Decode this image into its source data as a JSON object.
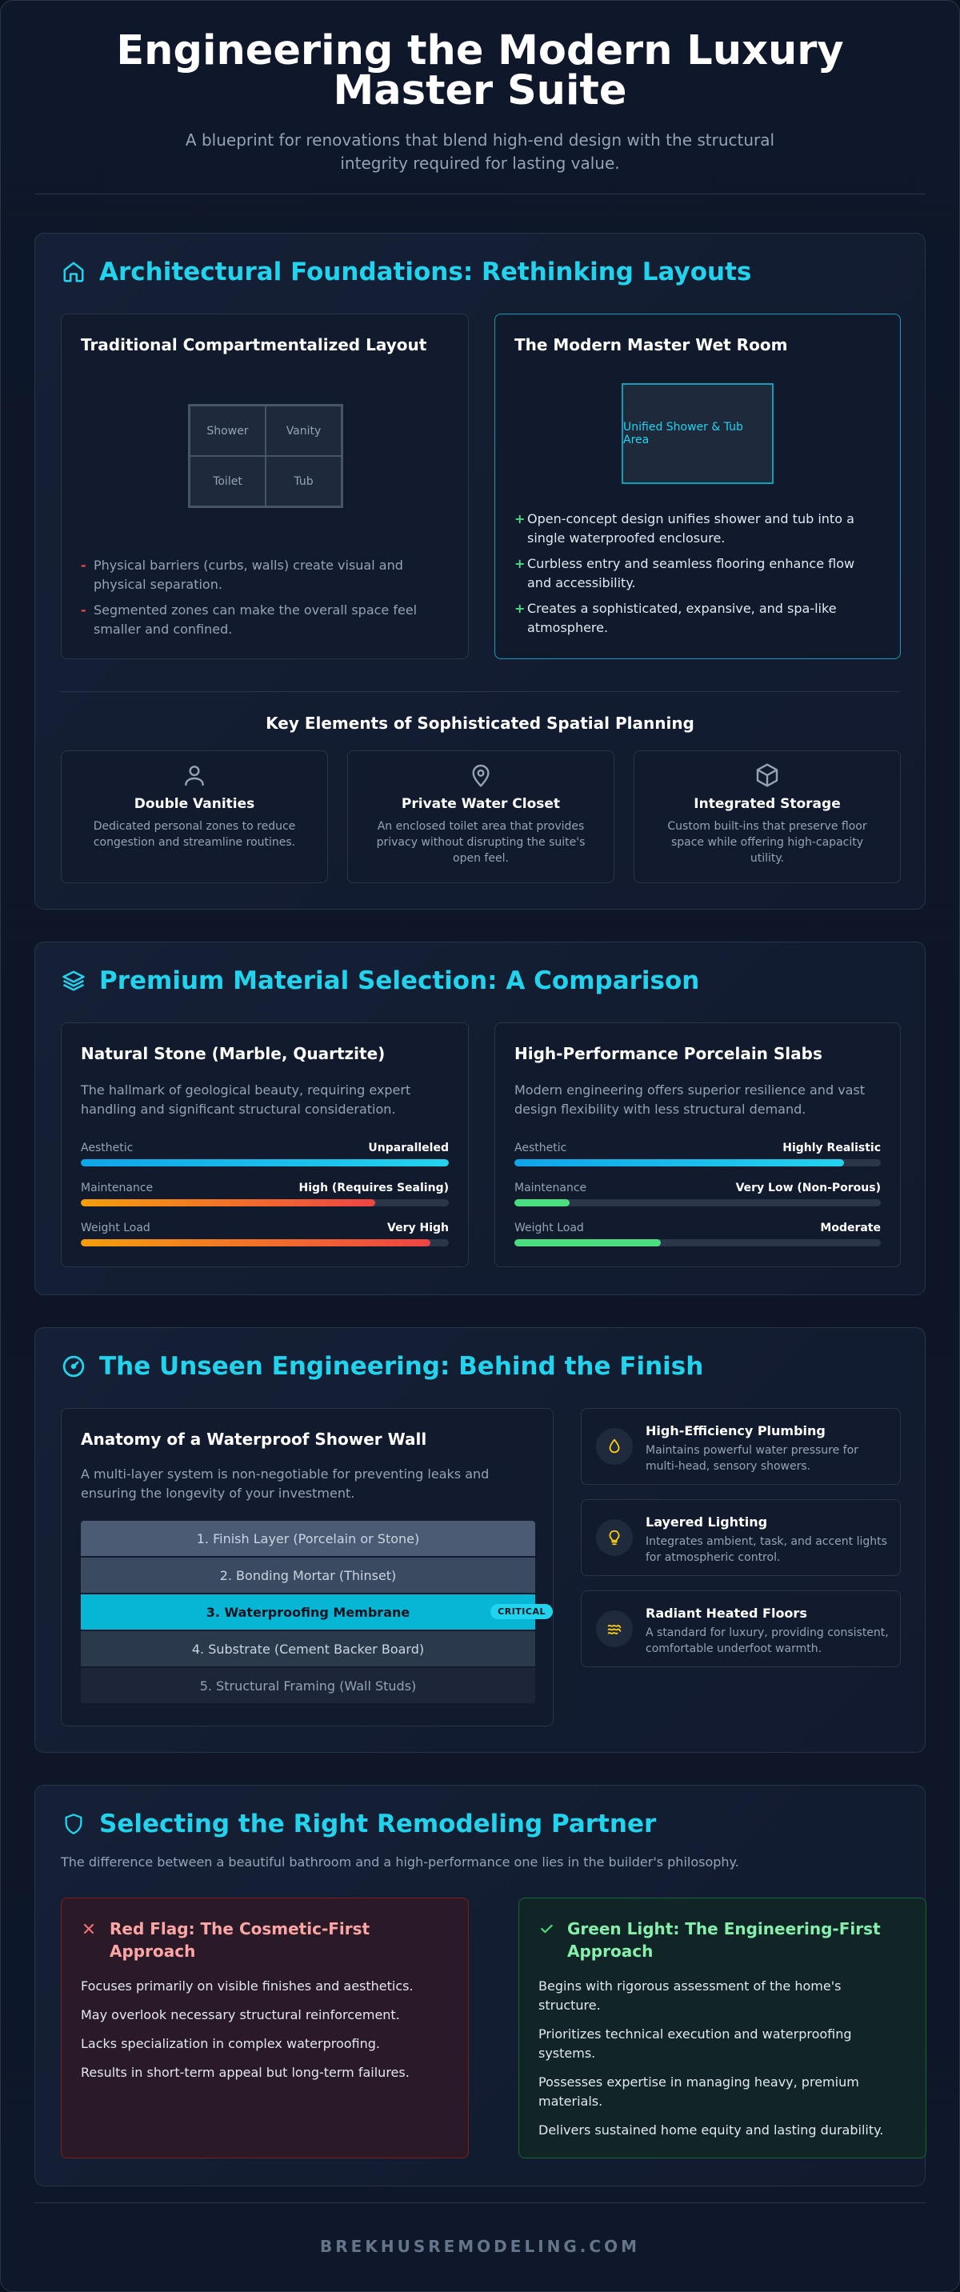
{
  "header": {
    "title": "Engineering the Modern Luxury Master Suite",
    "subtitle": "A blueprint for renovations that blend high-end design with the structural integrity required for lasting value."
  },
  "colors": {
    "accent": "#22d3ee",
    "background": "#0f172a",
    "red": "#ef4444",
    "green": "#4ade80",
    "orange": "#f59e0b"
  },
  "layouts": {
    "title": "Architectural Foundations: Rethinking Layouts",
    "icon": "home-icon",
    "traditional": {
      "title": "Traditional Compartmentalized Layout",
      "grid": [
        "Shower",
        "Vanity",
        "Toilet",
        "Tub"
      ],
      "bullets": [
        "Physical barriers (curbs, walls) create visual and physical separation.",
        "Segmented zones can make the overall space feel smaller and confined."
      ],
      "bullet_marker": "-"
    },
    "modern": {
      "title": "The Modern Master Wet Room",
      "box_label": "Unified Shower & Tub Area",
      "bullets": [
        "Open-concept design unifies shower and tub into a single waterproofed enclosure.",
        "Curbless entry and seamless flooring enhance flow and accessibility.",
        "Creates a sophisticated, expansive, and spa-like atmosphere."
      ],
      "bullet_marker": "+"
    },
    "key_elements": {
      "title": "Key Elements of Sophisticated Spatial Planning",
      "items": [
        {
          "icon": "user-icon",
          "title": "Double Vanities",
          "desc": "Dedicated personal zones to reduce congestion and streamline routines."
        },
        {
          "icon": "location-pin-icon",
          "title": "Private Water Closet",
          "desc": "An enclosed toilet area that provides privacy without disrupting the suite's open feel."
        },
        {
          "icon": "cube-icon",
          "title": "Integrated Storage",
          "desc": "Custom built-ins that preserve floor space while offering high-capacity utility."
        }
      ]
    }
  },
  "materials": {
    "title": "Premium Material Selection: A Comparison",
    "icon": "layers-icon",
    "cards": [
      {
        "title": "Natural Stone (Marble, Quartzite)",
        "desc": "The hallmark of geological beauty, requiring expert handling and significant structural consideration.",
        "bars": [
          {
            "label": "Aesthetic",
            "value": "Unparalleled",
            "level": 1.0,
            "color": "#22d3ee"
          },
          {
            "label": "Maintenance",
            "value": "High (Requires Sealing)",
            "level": 0.8,
            "color": "#ef4444"
          },
          {
            "label": "Weight Load",
            "value": "Very High",
            "level": 0.95,
            "color": "#ef4444"
          }
        ]
      },
      {
        "title": "High-Performance Porcelain Slabs",
        "desc": "Modern engineering offers superior resilience and vast design flexibility with less structural demand.",
        "bars": [
          {
            "label": "Aesthetic",
            "value": "Highly Realistic",
            "level": 0.9,
            "color": "#22d3ee"
          },
          {
            "label": "Maintenance",
            "value": "Very Low (Non-Porous)",
            "level": 0.15,
            "color": "#4ade80"
          },
          {
            "label": "Weight Load",
            "value": "Moderate",
            "level": 0.4,
            "color": "#4ade80"
          }
        ]
      }
    ]
  },
  "engineering": {
    "title": "The Unseen Engineering: Behind the Finish",
    "icon": "gauge-icon",
    "anatomy": {
      "title": "Anatomy of a Waterproof Shower Wall",
      "desc": "A multi-layer system is non-negotiable for preventing leaks and ensuring the longevity of your investment.",
      "layers": [
        "1. Finish Layer (Porcelain or Stone)",
        "2. Bonding Mortar (Thinset)",
        "3. Waterproofing Membrane",
        "4. Substrate (Cement Backer Board)",
        "5. Structural Framing (Wall Studs)"
      ],
      "critical_badge": "CRITICAL"
    },
    "features": [
      {
        "icon": "water-drop-icon",
        "title": "High-Efficiency Plumbing",
        "desc": "Maintains powerful water pressure for multi-head, sensory showers."
      },
      {
        "icon": "lightbulb-icon",
        "title": "Layered Lighting",
        "desc": "Integrates ambient, task, and accent lights for atmospheric control."
      },
      {
        "icon": "heat-waves-icon",
        "title": "Radiant Heated Floors",
        "desc": "A standard for luxury, providing consistent, comfortable underfoot warmth."
      }
    ]
  },
  "partner": {
    "title": "Selecting the Right Remodeling Partner",
    "icon": "shield-icon",
    "intro": "The difference between a beautiful bathroom and a high-performance one lies in the builder's philosophy.",
    "red": {
      "icon": "x-icon",
      "title": "Red Flag: The Cosmetic-First Approach",
      "items": [
        "Focuses primarily on visible finishes and aesthetics.",
        "May overlook necessary structural reinforcement.",
        "Lacks specialization in complex waterproofing.",
        "Results in short-term appeal but long-term failures."
      ]
    },
    "green": {
      "icon": "check-icon",
      "title": "Green Light: The Engineering-First Approach",
      "items": [
        "Begins with rigorous assessment of the home's structure.",
        "Prioritizes technical execution and waterproofing systems.",
        "Possesses expertise in managing heavy, premium materials.",
        "Delivers sustained home equity and lasting durability."
      ]
    }
  },
  "footer": {
    "text": "BREKHUSREMODELING.COM"
  }
}
